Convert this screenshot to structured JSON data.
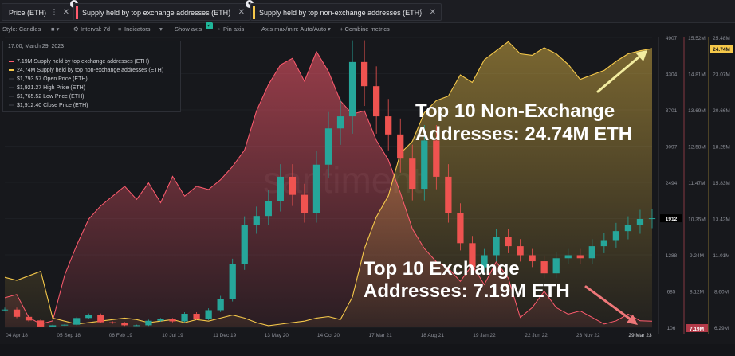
{
  "tabs": [
    {
      "label": "Price (ETH)",
      "color": "#ffffff"
    },
    {
      "label": "Supply held by top exchange addresses (ETH)",
      "color": "#ff5b6e"
    },
    {
      "label": "Supply held by top non-exchange addresses (ETH)",
      "color": "#f5c84a"
    }
  ],
  "toolbar": {
    "style": "Style: Candles",
    "interval": "Interval: 7d",
    "indicators": "Indicators:",
    "show_axis": "Show axis",
    "pin_axis": "Pin axis",
    "axis_max_min": "Axis max/min: Auto/Auto",
    "combine": "+ Combine metrics"
  },
  "legend": {
    "date": "17:00, March 29, 2023",
    "rows": [
      {
        "value": "7.19M",
        "label": "Supply held by top exchange addresses (ETH)",
        "color": "#ff5b6e"
      },
      {
        "value": "24.74M",
        "label": "Supply held by top non-exchange addresses (ETH)",
        "color": "#f5c84a"
      },
      {
        "value": "$1,793.57",
        "label": "Open Price (ETH)",
        "color": "#2b2d33"
      },
      {
        "value": "$1,921.27",
        "label": "High Price (ETH)",
        "color": "#2b2d33"
      },
      {
        "value": "$1,765.52",
        "label": "Low Price (ETH)",
        "color": "#2b2d33"
      },
      {
        "value": "$1,912.40",
        "label": "Close Price (ETH)",
        "color": "#2b2d33"
      }
    ]
  },
  "watermark": "santiment",
  "annotations": {
    "non_exchange": "Top 10 Non-Exchange\nAddresses: 24.74M ETH",
    "exchange": "Top 10 Exchange\nAddresses: 7.19M ETH"
  },
  "chart_data": {
    "type": "line",
    "x_tick_labels": [
      "04 Apr 18",
      "05 Sep 18",
      "06 Feb 19",
      "10 Jul 19",
      "11 Dec 19",
      "13 May 20",
      "14 Oct 20",
      "17 Mar 21",
      "18 Aug 21",
      "19 Jan 22",
      "22 Jun 22",
      "23 Nov 22",
      "29 Mar 23"
    ],
    "price_axis": {
      "ticks": [
        "4907",
        "4304",
        "3701",
        "3097",
        "2494",
        "1891",
        "1288",
        "685",
        "106"
      ],
      "range": [
        106,
        4907
      ],
      "current": "1912"
    },
    "exchange_axis": {
      "ticks": [
        "15.52M",
        "14.81M",
        "13.69M",
        "12.58M",
        "11.47M",
        "10.35M",
        "9.24M",
        "8.12M",
        "7.00M"
      ],
      "current": "7.19M",
      "color": "#ff5b6e"
    },
    "nonexchange_axis": {
      "ticks": [
        "25.48M",
        "23.07M",
        "20.66M",
        "18.25M",
        "15.83M",
        "13.42M",
        "11.01M",
        "8.60M",
        "6.29M"
      ],
      "current": "24.74M",
      "color": "#f5c84a"
    },
    "series": [
      {
        "name": "Supply held by top exchange addresses (ETH)",
        "color": "#ff5b6e",
        "values": [
          7.9,
          8.0,
          7.3,
          7.1,
          7.2,
          8.6,
          9.5,
          10.3,
          10.7,
          11.0,
          11.3,
          10.9,
          11.4,
          10.8,
          11.6,
          11.0,
          11.3,
          11.2,
          11.5,
          11.9,
          12.4,
          13.6,
          14.4,
          15.0,
          15.2,
          14.5,
          15.4,
          14.8,
          13.9,
          13.5,
          13.6,
          12.7,
          12.1,
          11.1,
          10.0,
          9.4,
          9.0,
          8.8,
          8.4,
          8.9,
          8.3,
          9.0,
          8.5,
          7.3,
          7.6,
          8.1,
          7.6,
          7.4,
          7.5,
          7.3,
          7.1,
          7.2,
          7.4,
          7.2,
          7.19
        ]
      },
      {
        "name": "Supply held by top non-exchange addresses (ETH)",
        "color": "#f5c84a",
        "values": [
          9.6,
          9.4,
          9.7,
          10.0,
          6.9,
          6.7,
          6.5,
          6.6,
          6.7,
          6.8,
          6.9,
          6.8,
          6.6,
          6.7,
          6.8,
          6.6,
          6.8,
          6.7,
          6.9,
          7.1,
          6.9,
          6.6,
          6.4,
          6.5,
          6.6,
          6.7,
          6.9,
          7.0,
          6.8,
          8.3,
          11.5,
          13.6,
          15.0,
          17.8,
          18.6,
          20.5,
          21.3,
          21.6,
          23.0,
          22.5,
          24.0,
          24.6,
          25.2,
          24.4,
          24.3,
          24.8,
          24.4,
          23.7,
          22.7,
          23.0,
          23.3,
          23.9,
          24.4,
          24.6,
          24.74
        ]
      },
      {
        "name": "Close Price (ETH)",
        "color": "#26a69a",
        "values": [
          400,
          280,
          220,
          120,
          140,
          150,
          260,
          310,
          190,
          180,
          140,
          140,
          215,
          240,
          205,
          330,
          245,
          390,
          580,
          1150,
          1800,
          1950,
          2200,
          2600,
          2300,
          2000,
          2800,
          3400,
          3600,
          4500,
          4100,
          3600,
          3300,
          2900,
          2400,
          3200,
          2600,
          2000,
          1500,
          1100,
          1300,
          1600,
          1450,
          1300,
          1200,
          1000,
          1250,
          1300,
          1250,
          1450,
          1550,
          1700,
          1800,
          1900,
          1912
        ]
      }
    ]
  }
}
